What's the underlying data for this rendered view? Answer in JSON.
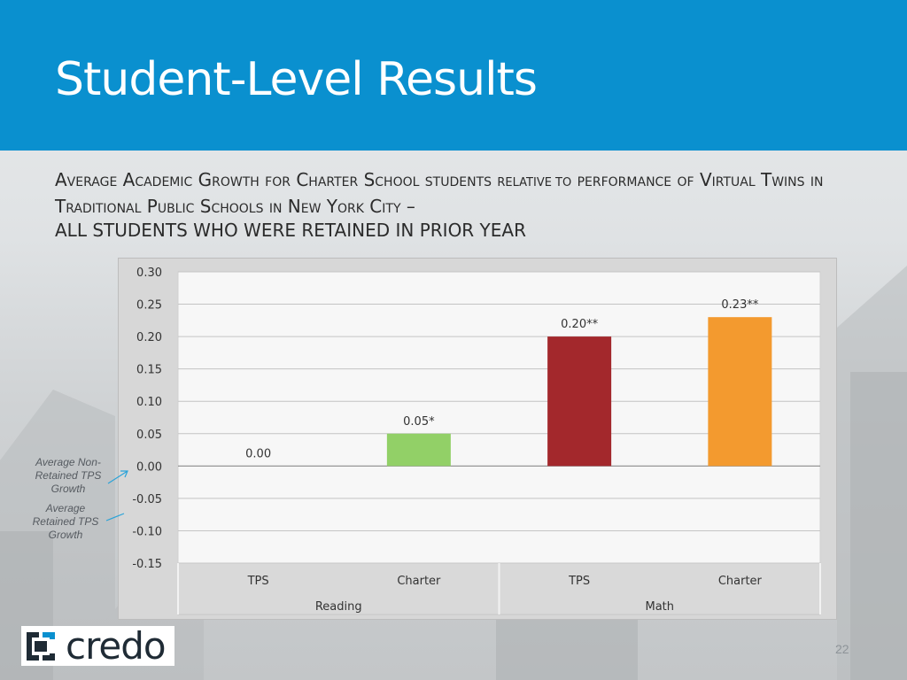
{
  "slide": {
    "title": "Student-Level Results",
    "subtitle_parts": [
      {
        "text": "Average Academic Growth for Charter School students ",
        "style": "sc"
      },
      {
        "text": "relative to",
        "style": "tiny"
      },
      {
        "text": " performance of Virtual Twins in Traditional Public Schools in New York City –",
        "style": "sc"
      },
      {
        "text": "ALL STUDENTS WHO WERE RETAINED IN PRIOR YEAR",
        "style": "plain"
      }
    ],
    "page_number": "22",
    "brand_color": "#0a90cf"
  },
  "side_labels": {
    "non_retained": "Average Non-Retained TPS Growth",
    "retained": "Average Retained TPS Growth"
  },
  "logo": {
    "text": "credo",
    "icon": "credo-bracket-logo-icon"
  },
  "chart_data": {
    "type": "bar",
    "ylim": [
      -0.15,
      0.3
    ],
    "yticks": [
      "0.30",
      "0.25",
      "0.20",
      "0.15",
      "0.10",
      "0.05",
      "0.00",
      "-0.05",
      "-0.10",
      "-0.15"
    ],
    "grid": true,
    "categories": [
      "TPS",
      "Charter",
      "TPS",
      "Charter"
    ],
    "groups": [
      "Reading",
      "Math"
    ],
    "values": [
      0.0,
      0.05,
      0.2,
      0.23
    ],
    "data_labels": [
      "0.00",
      "0.05*",
      "0.20**",
      "0.23**"
    ],
    "colors": [
      "#ffffff",
      "#92d067",
      "#a3282c",
      "#f39a2f"
    ]
  }
}
